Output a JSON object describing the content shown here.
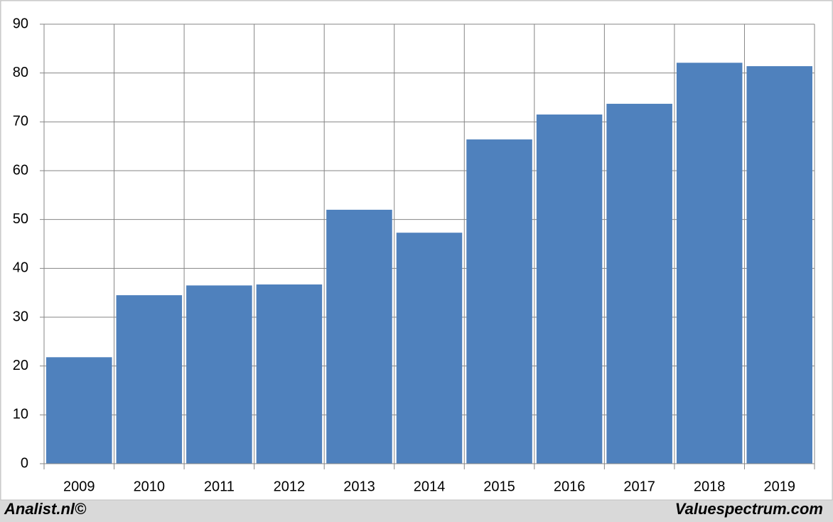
{
  "chart_data": {
    "type": "bar",
    "categories": [
      "2009",
      "2010",
      "2011",
      "2012",
      "2013",
      "2014",
      "2015",
      "2016",
      "2017",
      "2018",
      "2019"
    ],
    "values": [
      21.8,
      34.5,
      36.5,
      36.7,
      52.0,
      47.3,
      66.4,
      71.5,
      73.7,
      82.1,
      81.4
    ],
    "color": "#4f81bd",
    "ylim": [
      0,
      90
    ],
    "yticks": [
      0,
      10,
      20,
      30,
      40,
      50,
      60,
      70,
      80,
      90
    ],
    "grid": true,
    "footer_left": "Analist.nl©",
    "footer_right": "Valuespectrum.com"
  }
}
